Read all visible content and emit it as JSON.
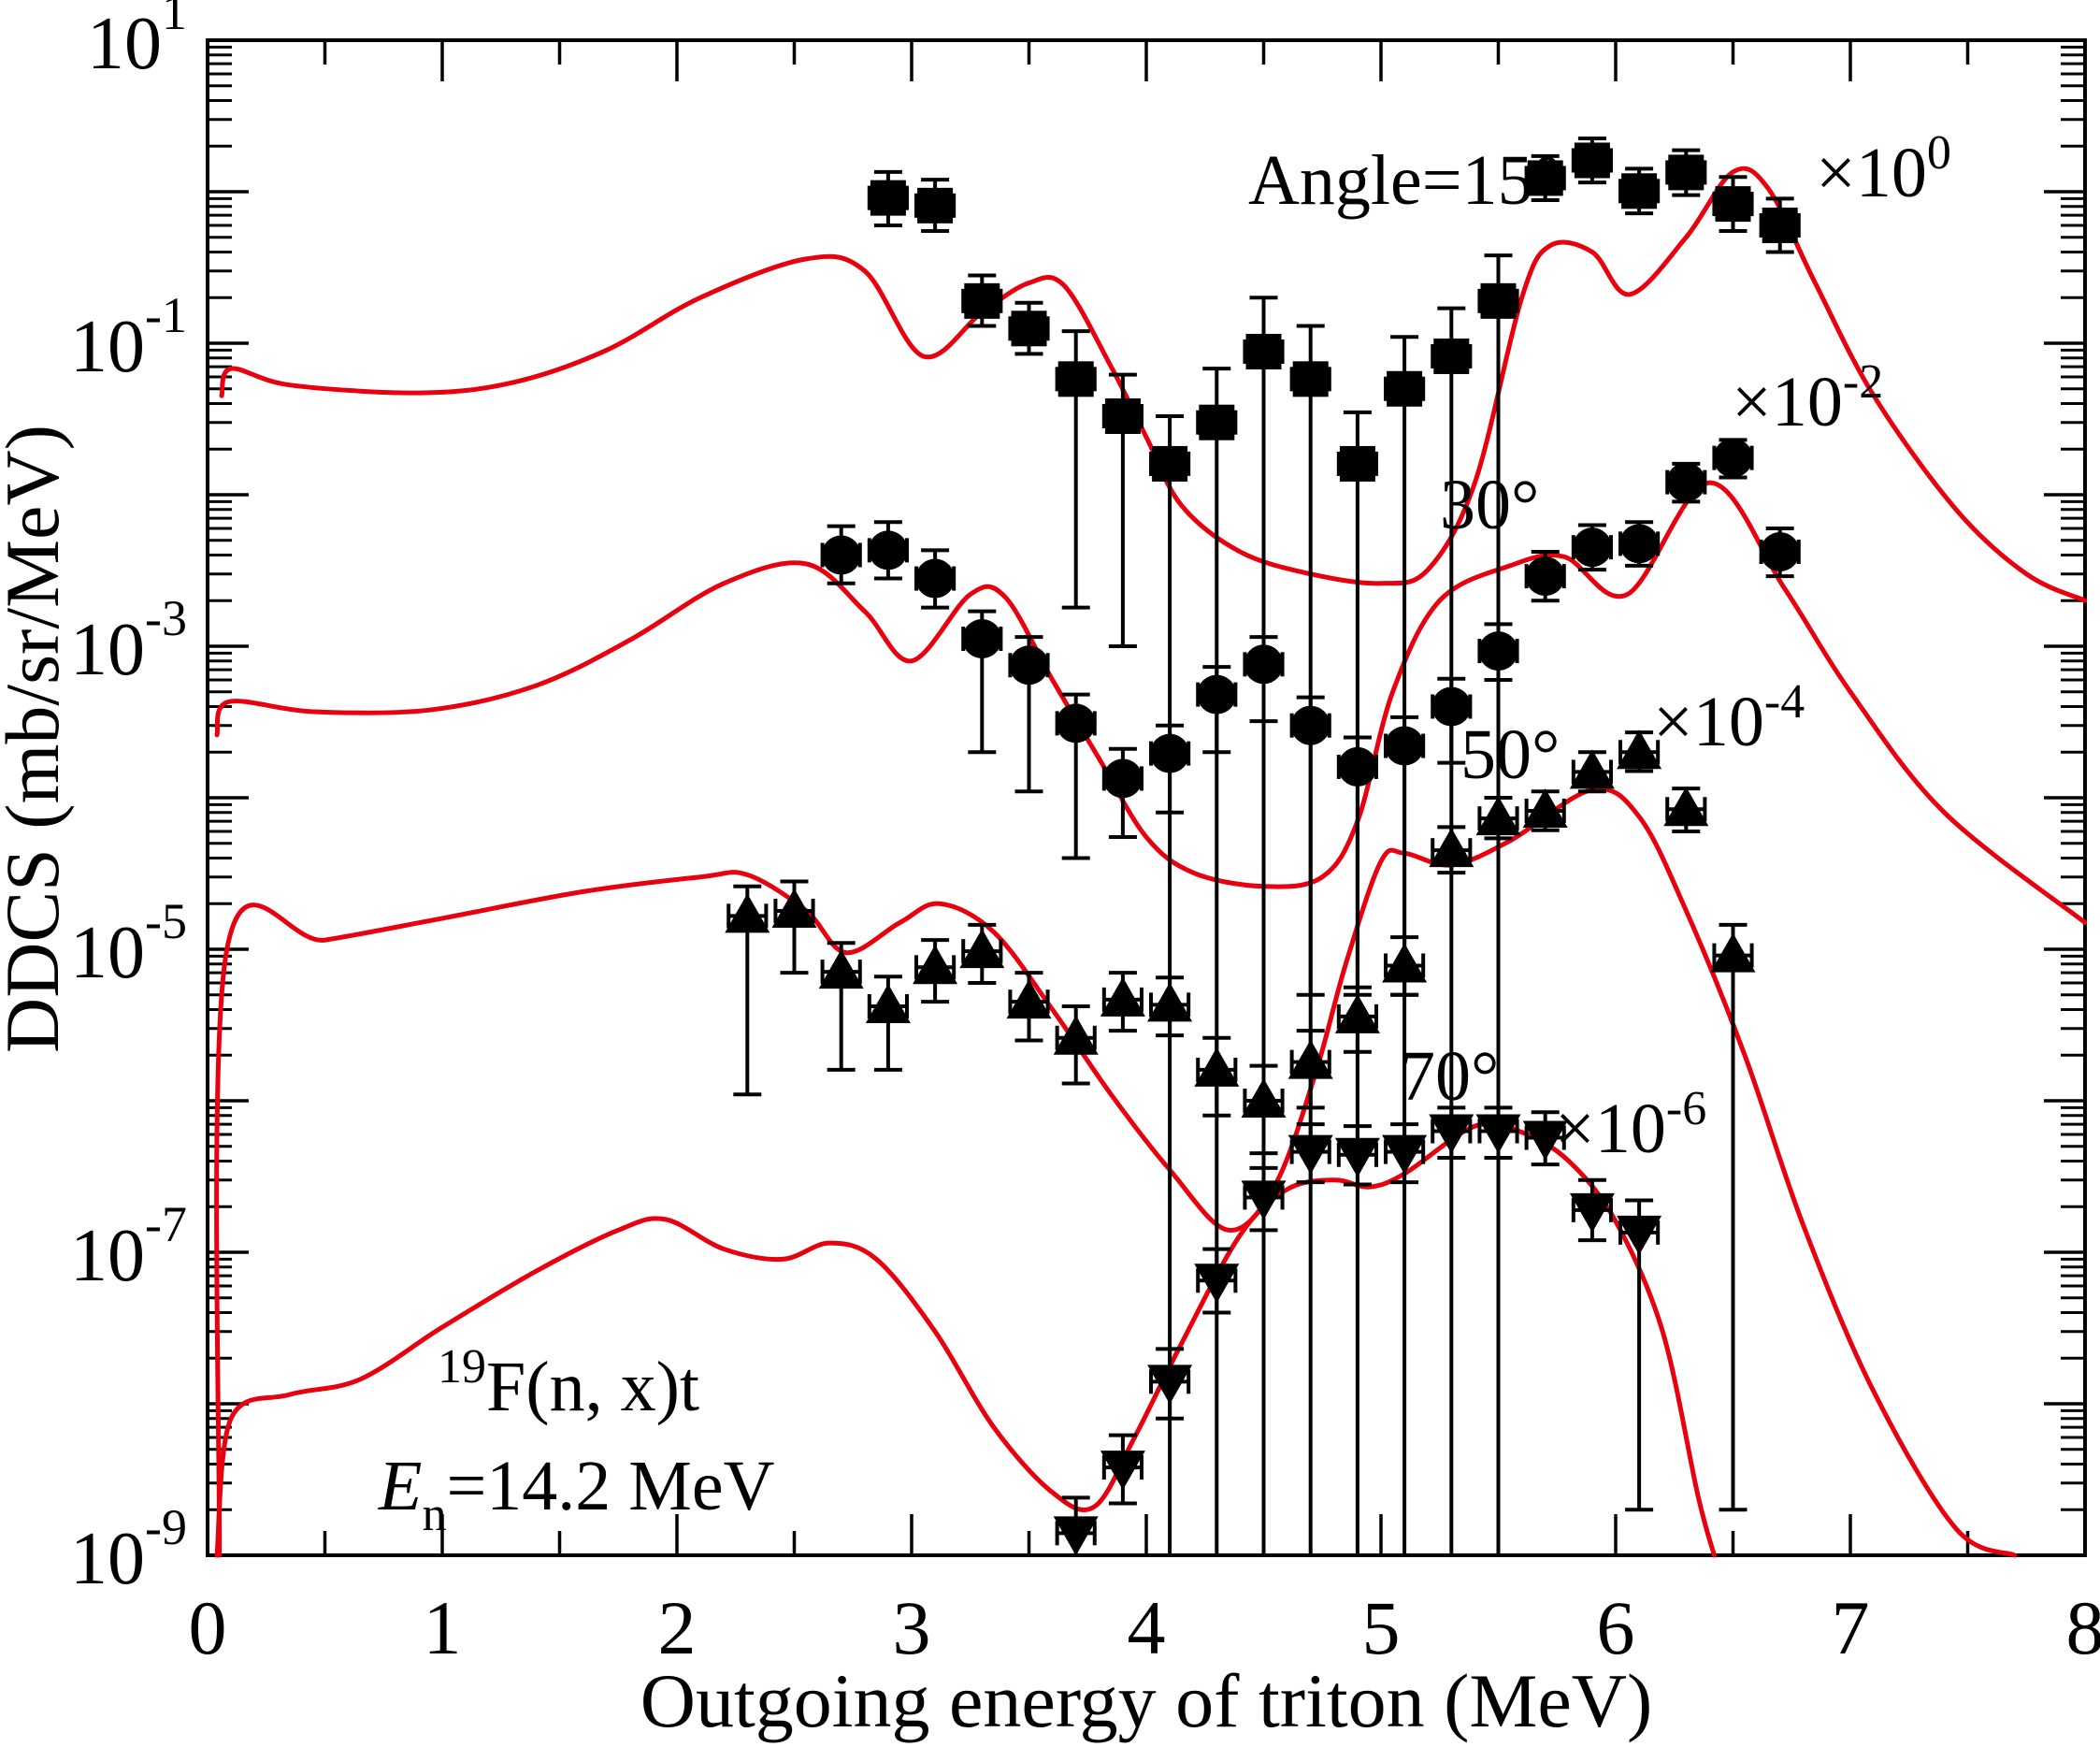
{
  "chart_data": {
    "type": "scatter+line",
    "title": "",
    "xlabel": "Outgoing energy of triton (MeV)",
    "ylabel": "DDCS (mb/sr/MeV)",
    "x_range": [
      0,
      8
    ],
    "x_major_step": 1,
    "x_minor_step": 0.5,
    "y_log_range_exp": [
      -9,
      1
    ],
    "y_labeled_exponents": [
      1,
      -1,
      -3,
      -5,
      -7,
      -9
    ],
    "grid": "off",
    "legend": "none",
    "colors": {
      "data": "#000000",
      "model_curve": "#e8000f",
      "frame": "#000000"
    },
    "x_error": 0.08,
    "series": [
      {
        "name": "Angle=15deg",
        "marker": "square",
        "scale_label": "x10^0",
        "points": [
          [
            2.9,
            0.91,
            0.6,
            1.35
          ],
          [
            3.1,
            0.81,
            0.55,
            1.2
          ],
          [
            3.3,
            0.19,
            0.13,
            0.28
          ],
          [
            3.5,
            0.125,
            0.085,
            0.185
          ],
          [
            3.7,
            0.058,
            0.0018,
            0.12
          ],
          [
            3.9,
            0.033,
            0.001,
            0.062
          ],
          [
            4.1,
            0.016,
            0,
            0.033
          ],
          [
            4.3,
            0.03,
            0,
            0.068
          ],
          [
            4.5,
            0.088,
            0,
            0.2
          ],
          [
            4.7,
            0.058,
            0,
            0.13
          ],
          [
            4.9,
            0.016,
            0,
            0.035
          ],
          [
            5.1,
            0.05,
            0,
            0.11
          ],
          [
            5.3,
            0.082,
            0,
            0.17
          ],
          [
            5.5,
            0.19,
            0,
            0.38
          ],
          [
            5.7,
            1.23,
            0.88,
            1.72
          ],
          [
            5.9,
            1.61,
            1.15,
            2.25
          ],
          [
            6.1,
            1.01,
            0.72,
            1.42
          ],
          [
            6.3,
            1.34,
            0.95,
            1.88
          ],
          [
            6.5,
            0.83,
            0.55,
            1.25
          ],
          [
            6.7,
            0.6,
            0.4,
            0.9
          ]
        ]
      },
      {
        "name": "Angle=30deg",
        "marker": "circle",
        "scale_label": "x10^-2",
        "points": [
          [
            2.7,
            0.004,
            0.0026,
            0.0062
          ],
          [
            2.9,
            0.0043,
            0.0028,
            0.0066
          ],
          [
            3.1,
            0.0028,
            0.0018,
            0.0043
          ],
          [
            3.3,
            0.00112,
            0.0002,
            0.0017
          ],
          [
            3.5,
            0.00075,
            0.00011,
            0.00115
          ],
          [
            3.7,
            0.00031,
            4e-05,
            0.00048
          ],
          [
            3.9,
            0.000134,
            5.5e-05,
            0.00021
          ],
          [
            4.1,
            0.000196,
            8e-05,
            0.0003
          ],
          [
            4.3,
            0.00048,
            0.0002,
            0.00073
          ],
          [
            4.5,
            0.00076,
            0.00032,
            0.00115
          ],
          [
            4.7,
            0.0003,
            5e-06,
            0.00046
          ],
          [
            4.9,
            0.00016,
            5e-06,
            0.00025
          ],
          [
            5.1,
            0.00022,
            5e-06,
            0.00034
          ],
          [
            5.3,
            0.0004,
            0.00017,
            0.00061
          ],
          [
            5.5,
            0.00093,
            0.0006,
            0.0014
          ],
          [
            5.7,
            0.0029,
            0.002,
            0.0042
          ],
          [
            5.9,
            0.0045,
            0.0032,
            0.0063
          ],
          [
            6.1,
            0.00475,
            0.0034,
            0.0066
          ],
          [
            6.3,
            0.0121,
            0.009,
            0.016
          ],
          [
            6.5,
            0.0175,
            0.013,
            0.023
          ],
          [
            6.7,
            0.0042,
            0.0029,
            0.006
          ]
        ]
      },
      {
        "name": "Angle=50deg",
        "marker": "triangle-up",
        "scale_label": "x10^-4",
        "points": [
          [
            2.3,
            1.66e-05,
            1.1e-06,
            2.6e-05
          ],
          [
            2.5,
            1.79e-05,
            7e-06,
            2.8e-05
          ],
          [
            2.7,
            7.1e-06,
            1.6e-06,
            1.1e-05
          ],
          [
            2.9,
            4.2e-06,
            1.6e-06,
            6.6e-06
          ],
          [
            3.1,
            7.6e-06,
            4.5e-06,
            1.15e-05
          ],
          [
            3.3,
            9.7e-06,
            6e-06,
            1.45e-05
          ],
          [
            3.5,
            4.5e-06,
            2.5e-06,
            7e-06
          ],
          [
            3.7,
            2.6e-06,
            1.3e-06,
            4.2e-06
          ],
          [
            3.9,
            4.65e-06,
            2.9e-06,
            7e-06
          ],
          [
            4.1,
            4.3e-06,
            2.7e-06,
            6.5e-06
          ],
          [
            4.3,
            1.6e-06,
            8e-07,
            2.6e-06
          ],
          [
            4.5,
            1e-06,
            4.5e-07,
            1.7e-06
          ],
          [
            4.7,
            1.8e-06,
            9e-07,
            2.9e-06
          ],
          [
            4.9,
            3.6e-06,
            2.1e-06,
            5.6e-06
          ],
          [
            5.1,
            7.8e-06,
            5e-06,
            1.2e-05
          ],
          [
            5.3,
            4.5e-05,
            3.2e-05,
            6.4e-05
          ],
          [
            5.5,
            7.3e-05,
            5.4e-05,
            0.0001
          ],
          [
            5.7,
            8.2e-05,
            6.1e-05,
            0.00011
          ],
          [
            5.9,
            0.000148,
            0.00011,
            0.0002
          ],
          [
            6.1,
            0.0002,
            0.00015,
            0.00027
          ],
          [
            6.3,
            8.4e-05,
            6e-05,
            0.000115
          ],
          [
            6.5,
            9.1e-06,
            2e-09,
            1.45e-05
          ]
        ]
      },
      {
        "name": "Angle=70deg",
        "marker": "triangle-down",
        "scale_label": "x10^-6",
        "points": [
          [
            3.7,
            1.4e-09,
            8e-10,
            2.4e-09
          ],
          [
            3.9,
            3.8e-09,
            2.2e-09,
            6.2e-09
          ],
          [
            4.1,
            1.4e-08,
            8e-09,
            2.3e-08
          ],
          [
            4.3,
            6.5e-08,
            4e-08,
            1.05e-07
          ],
          [
            4.5,
            2.3e-07,
            1.4e-07,
            3.6e-07
          ],
          [
            4.7,
            4.6e-07,
            2.9e-07,
            7e-07
          ],
          [
            4.9,
            4.4e-07,
            2.8e-07,
            6.8e-07
          ],
          [
            5.1,
            4.6e-07,
            2.9e-07,
            7e-07
          ],
          [
            5.3,
            6.3e-07,
            4.2e-07,
            9e-07
          ],
          [
            5.5,
            6.3e-07,
            4.2e-07,
            9e-07
          ],
          [
            5.7,
            5.7e-07,
            3.8e-07,
            8.4e-07
          ],
          [
            5.9,
            1.9e-07,
            1.2e-07,
            3e-07
          ],
          [
            6.1,
            1.35e-07,
            2e-09,
            2.2e-07
          ]
        ]
      }
    ],
    "curves": [
      {
        "name": "model-15deg",
        "points": [
          [
            0.06,
            0.045
          ],
          [
            0.1,
            0.068
          ],
          [
            0.35,
            0.053
          ],
          [
            0.9,
            0.047
          ],
          [
            1.3,
            0.055
          ],
          [
            1.7,
            0.09
          ],
          [
            2.1,
            0.2
          ],
          [
            2.55,
            0.36
          ],
          [
            2.8,
            0.3
          ],
          [
            3.05,
            0.082
          ],
          [
            3.3,
            0.16
          ],
          [
            3.5,
            0.25
          ],
          [
            3.65,
            0.24
          ],
          [
            3.85,
            0.07
          ],
          [
            4.0,
            0.024
          ],
          [
            4.15,
            0.0085
          ],
          [
            4.4,
            0.0042
          ],
          [
            4.7,
            0.003
          ],
          [
            5.0,
            0.0026
          ],
          [
            5.2,
            0.0032
          ],
          [
            5.4,
            0.012
          ],
          [
            5.6,
            0.2
          ],
          [
            5.72,
            0.44
          ],
          [
            5.9,
            0.4
          ],
          [
            6.06,
            0.21
          ],
          [
            6.3,
            0.5
          ],
          [
            6.5,
            1.35
          ],
          [
            6.65,
            1.05
          ],
          [
            6.85,
            0.25
          ],
          [
            7.1,
            0.045
          ],
          [
            7.45,
            0.008
          ],
          [
            7.75,
            0.003
          ],
          [
            8.0,
            0.002
          ]
        ]
      },
      {
        "name": "model-30deg",
        "points": [
          [
            0.04,
            0.00026
          ],
          [
            0.09,
            0.00043
          ],
          [
            0.45,
            0.00037
          ],
          [
            0.95,
            0.00038
          ],
          [
            1.4,
            0.00055
          ],
          [
            1.8,
            0.0011
          ],
          [
            2.2,
            0.0026
          ],
          [
            2.55,
            0.0035
          ],
          [
            2.8,
            0.0017
          ],
          [
            3.0,
            0.0008
          ],
          [
            3.25,
            0.0022
          ],
          [
            3.4,
            0.0021
          ],
          [
            3.6,
            0.0006
          ],
          [
            3.8,
            0.00018
          ],
          [
            4.0,
            5.5e-05
          ],
          [
            4.2,
            3.2e-05
          ],
          [
            4.5,
            2.6e-05
          ],
          [
            4.75,
            3e-05
          ],
          [
            4.9,
            7e-05
          ],
          [
            5.05,
            0.0005
          ],
          [
            5.25,
            0.002
          ],
          [
            5.55,
            0.0034
          ],
          [
            5.78,
            0.0039
          ],
          [
            6.05,
            0.0022
          ],
          [
            6.4,
            0.012
          ],
          [
            6.72,
            0.0024
          ],
          [
            7.0,
            0.0005
          ],
          [
            7.4,
            8e-05
          ],
          [
            8.0,
            1.5e-05
          ]
        ]
      },
      {
        "name": "model-50deg",
        "points": [
          [
            0.05,
            1e-09
          ],
          [
            0.08,
            9.5e-06
          ],
          [
            0.5,
            1.15e-05
          ],
          [
            1.0,
            1.6e-05
          ],
          [
            1.6,
            2.4e-05
          ],
          [
            2.1,
            3e-05
          ],
          [
            2.3,
            3.1e-05
          ],
          [
            2.55,
            1.8e-05
          ],
          [
            2.72,
            9.5e-06
          ],
          [
            2.95,
            1.5e-05
          ],
          [
            3.12,
            2e-05
          ],
          [
            3.35,
            1.3e-05
          ],
          [
            3.6,
            4e-06
          ],
          [
            3.85,
            1.1e-06
          ],
          [
            4.1,
            3.5e-07
          ],
          [
            4.35,
            1.4e-07
          ],
          [
            4.55,
            2.8e-07
          ],
          [
            4.72,
            1.5e-06
          ],
          [
            4.85,
            8e-06
          ],
          [
            5.0,
            3.8e-05
          ],
          [
            5.1,
            4.3e-05
          ],
          [
            5.3,
            3.6e-05
          ],
          [
            5.55,
            5.2e-05
          ],
          [
            5.9,
            0.000113
          ],
          [
            6.1,
            7.5e-05
          ],
          [
            6.3,
            1.8e-05
          ],
          [
            6.55,
            2e-06
          ],
          [
            6.8,
            1.5e-07
          ],
          [
            7.1,
            1.2e-08
          ],
          [
            7.45,
            1.5e-09
          ],
          [
            7.7,
            1e-09
          ]
        ]
      },
      {
        "name": "model-70deg",
        "points": [
          [
            0.04,
            1e-09
          ],
          [
            0.1,
            8e-09
          ],
          [
            0.35,
            1.15e-08
          ],
          [
            0.65,
            1.45e-08
          ],
          [
            1.0,
            3.2e-08
          ],
          [
            1.4,
            7.5e-08
          ],
          [
            1.75,
            1.4e-07
          ],
          [
            1.95,
            1.65e-07
          ],
          [
            2.2,
            1.05e-07
          ],
          [
            2.45,
            9e-08
          ],
          [
            2.65,
            1.15e-07
          ],
          [
            2.85,
            9e-08
          ],
          [
            3.1,
            3e-08
          ],
          [
            3.35,
            7e-09
          ],
          [
            3.6,
            2.6e-09
          ],
          [
            3.78,
            2.1e-09
          ],
          [
            3.95,
            6e-09
          ],
          [
            4.15,
            2.5e-08
          ],
          [
            4.4,
            1.3e-07
          ],
          [
            4.6,
            2.6e-07
          ],
          [
            4.8,
            3e-07
          ],
          [
            4.95,
            2.7e-07
          ],
          [
            5.1,
            3.3e-07
          ],
          [
            5.4,
            6.8e-07
          ],
          [
            5.6,
            6.2e-07
          ],
          [
            5.8,
            4e-07
          ],
          [
            6.0,
            1.6e-07
          ],
          [
            6.2,
            3e-08
          ],
          [
            6.35,
            2.5e-09
          ],
          [
            6.42,
            1e-09
          ]
        ]
      }
    ],
    "annotations": [
      {
        "id": "angle-label",
        "x": 1335,
        "y": 218,
        "parts": [
          {
            "t": "Angle=15°"
          }
        ]
      },
      {
        "id": "scale-15",
        "x": 1942,
        "y": 210,
        "parts": [
          {
            "t": "×10"
          },
          {
            "t": "0",
            "sup": true
          }
        ]
      },
      {
        "id": "label-30",
        "x": 1540,
        "y": 565,
        "parts": [
          {
            "t": "30°"
          }
        ]
      },
      {
        "id": "scale-30",
        "x": 1852,
        "y": 455,
        "parts": [
          {
            "t": "×10"
          },
          {
            "t": "-2",
            "sup": true
          }
        ]
      },
      {
        "id": "label-50",
        "x": 1562,
        "y": 832,
        "parts": [
          {
            "t": "50°"
          }
        ]
      },
      {
        "id": "scale-50",
        "x": 1768,
        "y": 797,
        "parts": [
          {
            "t": "×10"
          },
          {
            "t": "-4",
            "sup": true
          }
        ]
      },
      {
        "id": "label-70",
        "x": 1497,
        "y": 1176,
        "parts": [
          {
            "t": "70°"
          }
        ]
      },
      {
        "id": "scale-70",
        "x": 1663,
        "y": 1232,
        "parts": [
          {
            "t": "×10"
          },
          {
            "t": "-6",
            "sup": true
          }
        ]
      },
      {
        "id": "reaction-label",
        "x": 468,
        "y": 1508,
        "parts": [
          {
            "t": "19",
            "sup": true
          },
          {
            "t": "F(n, x)t"
          }
        ]
      },
      {
        "id": "energy-label",
        "x": 405,
        "y": 1614,
        "parts": [
          {
            "t": "E",
            "italic": true
          },
          {
            "t": "n",
            "sub": true
          },
          {
            "t": "=14.2 MeV"
          }
        ]
      }
    ]
  },
  "layout_note": "black markers = measured data, red curves = model calculation"
}
